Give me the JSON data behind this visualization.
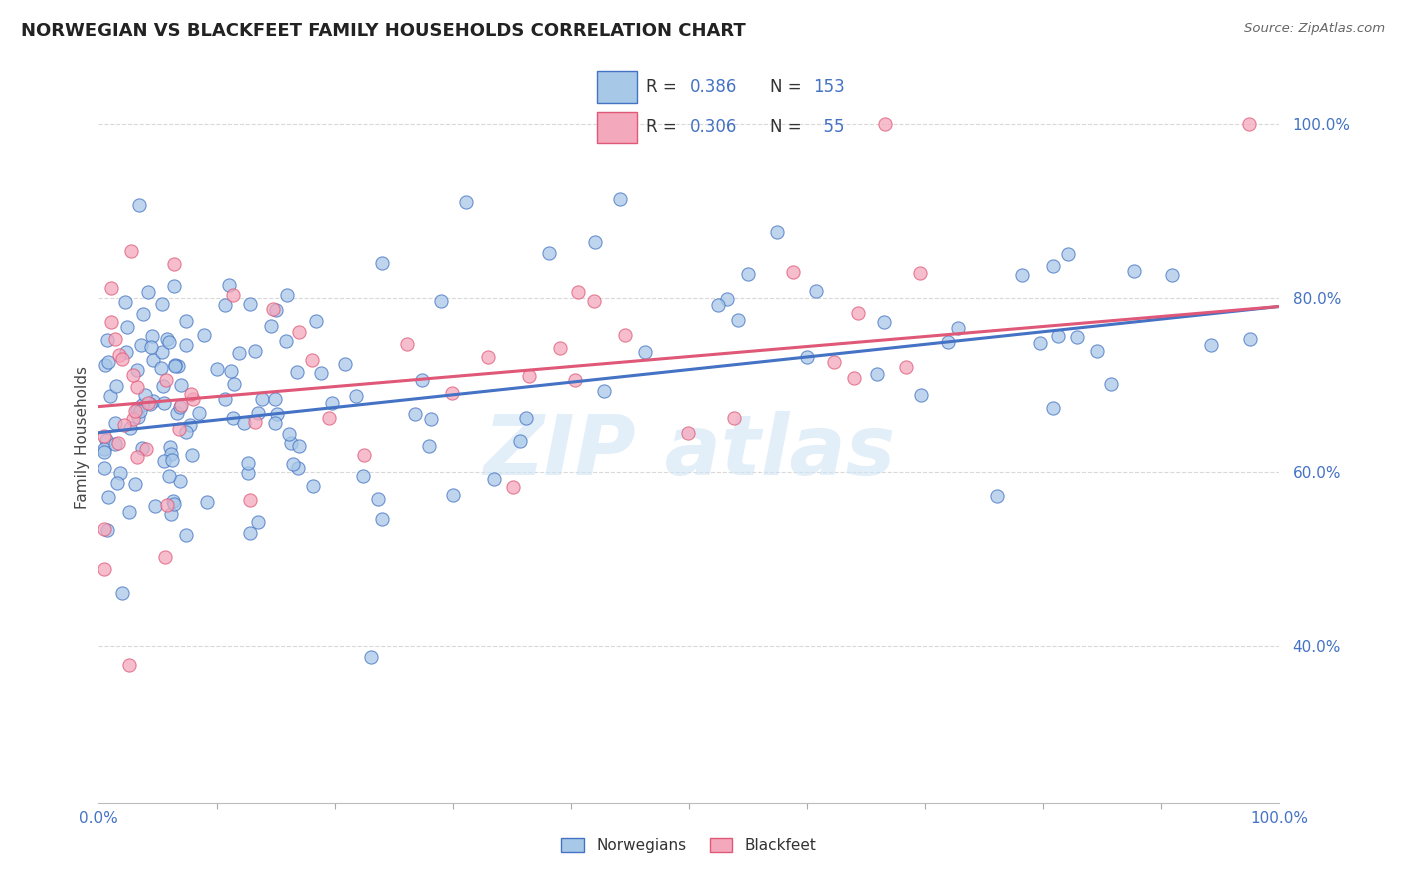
{
  "title": "NORWEGIAN VS BLACKFEET FAMILY HOUSEHOLDS CORRELATION CHART",
  "source_text": "Source: ZipAtlas.com",
  "ylabel": "Family Households",
  "xlim": [
    0.0,
    1.0
  ],
  "ylim": [
    0.22,
    1.06
  ],
  "xtick_labels": [
    "0.0%",
    "100.0%"
  ],
  "ytick_labels": [
    "40.0%",
    "60.0%",
    "80.0%",
    "100.0%"
  ],
  "ytick_positions": [
    0.4,
    0.6,
    0.8,
    1.0
  ],
  "grid_color": "#d0d0d0",
  "background_color": "#ffffff",
  "norwegian_color": "#a8c8e8",
  "blackfeet_color": "#f4a8bc",
  "norwegian_line_color": "#4472c4",
  "blackfeet_line_color": "#e05878",
  "watermark_color": "#d0e4f4",
  "watermark_alpha": 0.6,
  "title_fontsize": 13,
  "tick_fontsize": 11,
  "legend_fontsize": 12
}
